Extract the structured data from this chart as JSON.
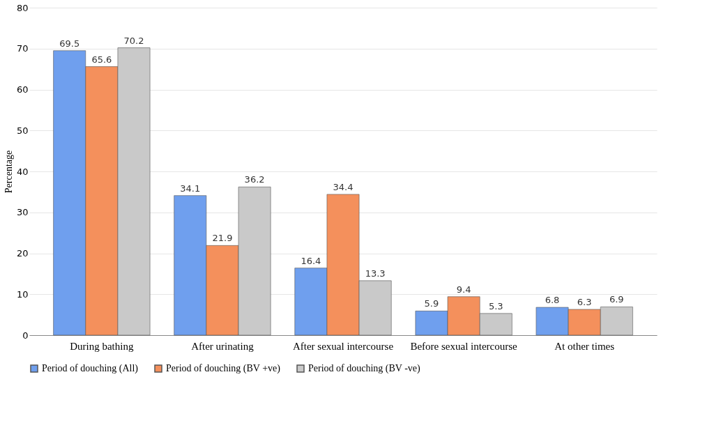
{
  "chart_data": {
    "type": "bar",
    "ylabel": "Percentage",
    "categories": [
      "During bathing",
      "After urinating",
      "After sexual intercourse",
      "Before sexual intercourse",
      "At other times"
    ],
    "series": [
      {
        "name": "Period of douching (All)",
        "color": "#6f9fee",
        "values": [
          69.5,
          34.1,
          16.4,
          5.9,
          6.8
        ]
      },
      {
        "name": "Period of douching (BV +ve)",
        "color": "#f4905c",
        "values": [
          65.6,
          21.9,
          34.4,
          9.4,
          6.3
        ]
      },
      {
        "name": "Period of douching (BV -ve)",
        "color": "#c9c9c9",
        "values": [
          70.2,
          36.2,
          13.3,
          5.3,
          6.9
        ]
      }
    ],
    "ylim": [
      0,
      80
    ],
    "yticks": [
      0,
      10,
      20,
      30,
      40,
      50,
      60,
      70,
      80
    ],
    "grid": "y",
    "legend": "bottom",
    "data_labels": true
  }
}
